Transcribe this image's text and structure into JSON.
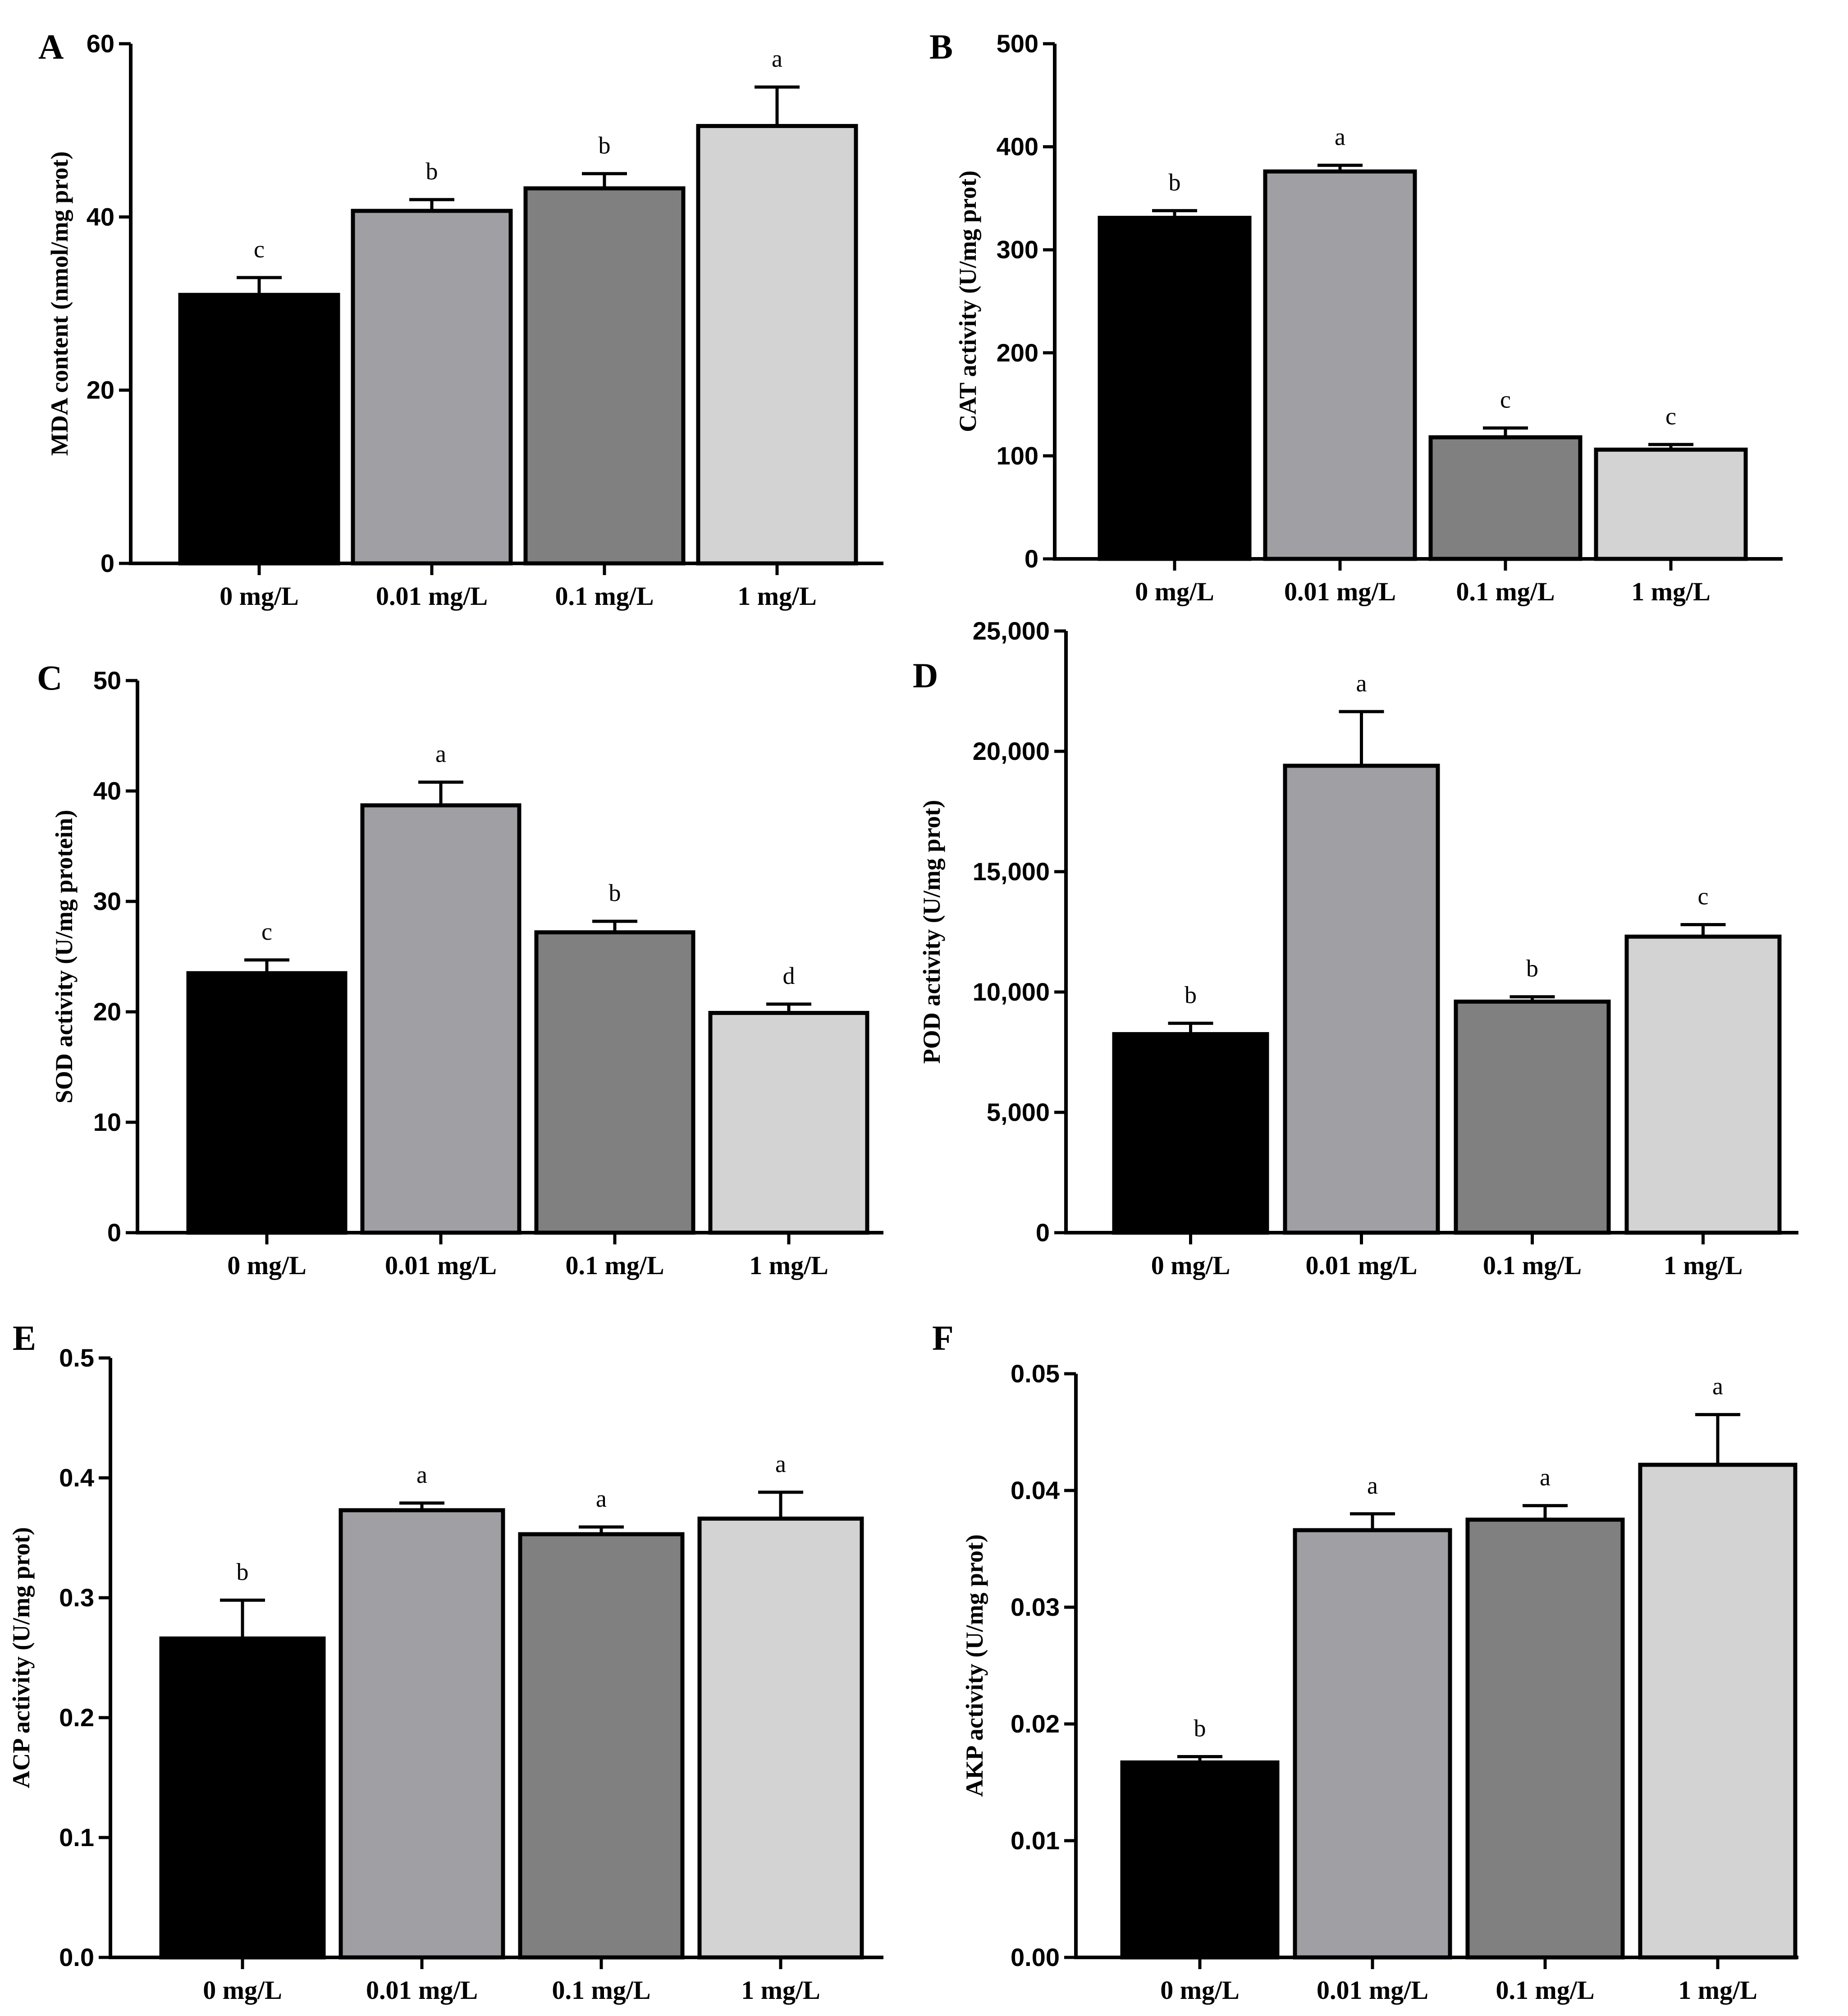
{
  "colors": {
    "c0": "#000000",
    "c1": "#a0a0a4",
    "c2": "#808080",
    "c3": "#d3d3d3",
    "axis": "#000000"
  },
  "chart_data": [
    {
      "panel": "A",
      "type": "bar",
      "categories": [
        "0 mg/L",
        "0.01 mg/L",
        "0.1 mg/L",
        "1 mg/L"
      ],
      "values": [
        31,
        40.7,
        43.3,
        50.5
      ],
      "errors": [
        2.0,
        1.3,
        1.7,
        4.5
      ],
      "significance": [
        "c",
        "b",
        "b",
        "a"
      ],
      "ylabel": "MDA content (nmol/mg prot)",
      "ylim": [
        0,
        60
      ],
      "yticks": [
        0,
        20,
        40,
        60
      ],
      "ytick_labels": [
        "0",
        "20",
        "40",
        "60"
      ]
    },
    {
      "panel": "B",
      "type": "bar",
      "categories": [
        "0 mg/L",
        "0.01 mg/L",
        "0.1 mg/L",
        "1 mg/L"
      ],
      "values": [
        331,
        376,
        118,
        106
      ],
      "errors": [
        7,
        6,
        9,
        5
      ],
      "significance": [
        "b",
        "a",
        "c",
        "c"
      ],
      "ylabel": "CAT activity (U/mg prot)",
      "ylim": [
        0,
        500
      ],
      "yticks": [
        0,
        100,
        200,
        300,
        400,
        500
      ],
      "ytick_labels": [
        "0",
        "100",
        "200",
        "300",
        "400",
        "500"
      ]
    },
    {
      "panel": "C",
      "type": "bar",
      "categories": [
        "0 mg/L",
        "0.01 mg/L",
        "0.1 mg/L",
        "1 mg/L"
      ],
      "values": [
        23.5,
        38.7,
        27.2,
        19.9
      ],
      "errors": [
        1.2,
        2.1,
        1.0,
        0.8
      ],
      "significance": [
        "c",
        "a",
        "b",
        "d"
      ],
      "ylabel": "SOD activity (U/mg protein)",
      "ylim": [
        0,
        50
      ],
      "yticks": [
        0,
        10,
        20,
        30,
        40,
        50
      ],
      "ytick_labels": [
        "0",
        "10",
        "20",
        "30",
        "40",
        "50"
      ]
    },
    {
      "panel": "D",
      "type": "bar",
      "categories": [
        "0 mg/L",
        "0.01 mg/L",
        "0.1 mg/L",
        "1 mg/L"
      ],
      "values": [
        8250,
        19400,
        9600,
        12300
      ],
      "errors": [
        450,
        2250,
        200,
        500
      ],
      "significance": [
        "b",
        "a",
        "b",
        "c"
      ],
      "ylabel": "POD activity (U/mg prot)",
      "ylim": [
        0,
        25000
      ],
      "yticks": [
        0,
        5000,
        10000,
        15000,
        20000,
        25000
      ],
      "ytick_labels": [
        "0",
        "5,000",
        "10,000",
        "15,000",
        "20,000",
        "25,000"
      ]
    },
    {
      "panel": "E",
      "type": "bar",
      "categories": [
        "0 mg/L",
        "0.01 mg/L",
        "0.1 mg/L",
        "1 mg/L"
      ],
      "values": [
        0.266,
        0.373,
        0.353,
        0.366
      ],
      "errors": [
        0.032,
        0.006,
        0.006,
        0.022
      ],
      "significance": [
        "b",
        "a",
        "a",
        "a"
      ],
      "ylabel": "ACP activity (U/mg prot)",
      "ylim": [
        0,
        0.5
      ],
      "yticks": [
        0,
        0.1,
        0.2,
        0.3,
        0.4,
        0.5
      ],
      "ytick_labels": [
        "0.0",
        "0.1",
        "0.2",
        "0.3",
        "0.4",
        "0.5"
      ]
    },
    {
      "panel": "F",
      "type": "bar",
      "categories": [
        "0 mg/L",
        "0.01 mg/L",
        "0.1 mg/L",
        "1 mg/L"
      ],
      "values": [
        0.0167,
        0.0366,
        0.0375,
        0.0422
      ],
      "errors": [
        0.0005,
        0.0014,
        0.0012,
        0.0043
      ],
      "significance": [
        "b",
        "a",
        "a",
        "a"
      ],
      "ylabel": "AKP activity (U/mg prot)",
      "ylim": [
        0,
        0.05
      ],
      "yticks": [
        0,
        0.01,
        0.02,
        0.03,
        0.04,
        0.05
      ],
      "ytick_labels": [
        "0.00",
        "0.01",
        "0.02",
        "0.03",
        "0.04",
        "0.05"
      ]
    }
  ]
}
